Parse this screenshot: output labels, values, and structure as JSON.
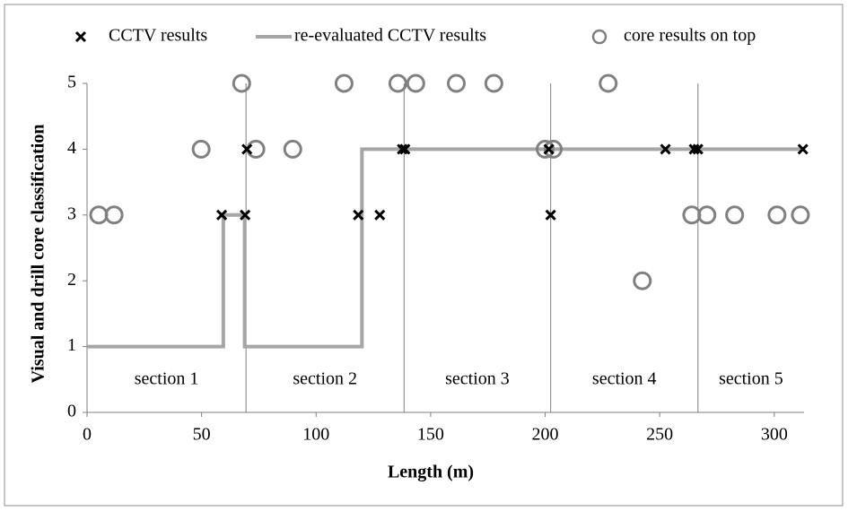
{
  "chart_data": {
    "type": "scatter",
    "xlabel": "Length (m)",
    "ylabel": "Visual and drill  core classification",
    "xlim": [
      0,
      313
    ],
    "xticks": [
      0,
      50,
      100,
      150,
      200,
      250,
      300
    ],
    "ylim": [
      0,
      5
    ],
    "yticks": [
      0,
      1,
      2,
      3,
      4,
      5
    ],
    "dividers": [
      69.4,
      138.4,
      202.4,
      266.7
    ],
    "section_labels": [
      "section 1",
      "section 2",
      "section 3",
      "section 4",
      "section 5"
    ],
    "series": [
      {
        "name": "CCTV results",
        "marker": "x",
        "color": "#000000",
        "x": [
          58.8,
          69,
          69.8,
          118.4,
          127.8,
          137.6,
          138.8,
          201.6,
          202.4,
          252.5,
          265,
          266.7,
          312.5
        ],
        "values": [
          3,
          3,
          4,
          3,
          3,
          4,
          4,
          4,
          3,
          4,
          4,
          4,
          4
        ]
      },
      {
        "name": "re-evaluated CCTV results",
        "marker": "line",
        "color": "#a6a6a6",
        "x": [
          0,
          59.5,
          59.5,
          68.8,
          68.8,
          120,
          120,
          313
        ],
        "values": [
          1,
          1,
          3,
          3,
          1,
          1,
          4,
          4
        ]
      },
      {
        "name": "core results on top",
        "marker": "circle",
        "color": "#808080",
        "x": [
          5.1,
          11.8,
          49.8,
          67.5,
          73.7,
          89.8,
          112.2,
          135.7,
          143.5,
          161.2,
          177.6,
          200,
          203.5,
          227.5,
          242.4,
          264,
          270.6,
          282.7,
          301.2,
          311.4
        ],
        "values": [
          3,
          3,
          4,
          5,
          4,
          4,
          5,
          5,
          5,
          5,
          5,
          4,
          4,
          5,
          2,
          3,
          3,
          3,
          3,
          3
        ]
      }
    ]
  }
}
